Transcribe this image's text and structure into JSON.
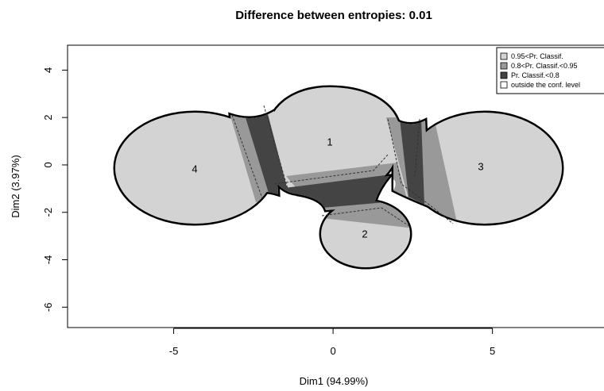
{
  "chart_data": {
    "type": "region",
    "title": "Difference between entropies: 0.01",
    "x_label": "Dim1 (94.99%)",
    "y_label": "Dim2 (3.97%)",
    "xlim": [
      -8.33,
      8.5
    ],
    "xticks": [
      -5,
      0,
      5
    ],
    "ylim": [
      -6.86,
      5.05
    ],
    "yticks": [
      -6,
      -4,
      -2,
      0,
      2,
      4
    ],
    "cluster_labels": [
      "1",
      "2",
      "3",
      "4"
    ],
    "legend": [
      {
        "name": "0.95<Pr. Classif.",
        "color": "#d3d3d3"
      },
      {
        "name": "0.8<Pr. Classif.<0.95",
        "color": "#999999"
      },
      {
        "name": "Pr. Classif.<0.8",
        "color": "#444444"
      },
      {
        "name": "outside the conf. level",
        "color": "#ffffff"
      }
    ]
  }
}
